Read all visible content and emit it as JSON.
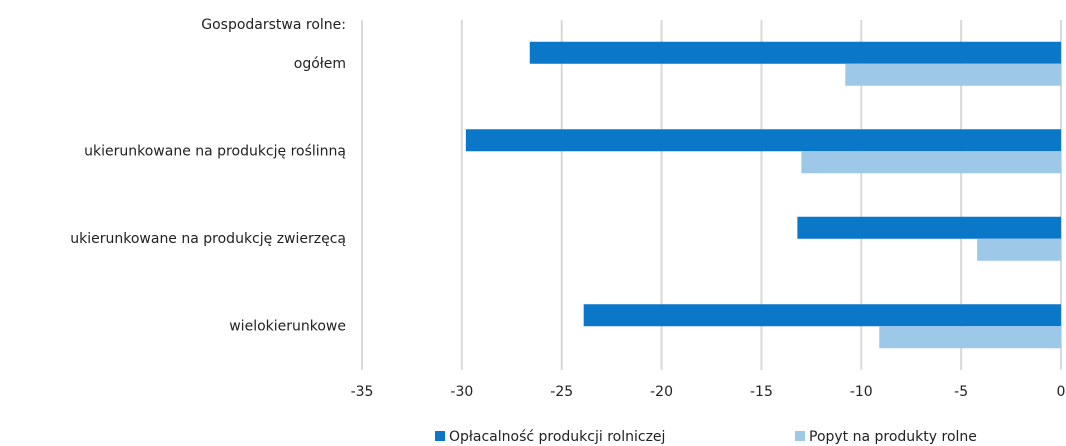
{
  "chart_data": {
    "type": "hbar",
    "ylabel": "Gospodarstwa rolne:",
    "categories": [
      "ogółem",
      "ukierunkowane na produkcję roślinną",
      "ukierunkowane na produkcję zwierzęcą",
      "wielokierunkowe"
    ],
    "series": [
      {
        "name": "Opłacalność produkcji rolniczej",
        "color": "#0a77c9",
        "values": [
          -26.6,
          -29.8,
          -13.2,
          -23.9
        ]
      },
      {
        "name": "Popyt na produkty rolne",
        "color": "#9dc8e8",
        "values": [
          -10.8,
          -13.0,
          -4.2,
          -9.1
        ]
      }
    ],
    "xlim": [
      -35,
      0
    ],
    "xticks": [
      -35,
      -30,
      -25,
      -20,
      -15,
      -10,
      -5,
      0
    ],
    "grid": true,
    "legend": "bottom"
  }
}
